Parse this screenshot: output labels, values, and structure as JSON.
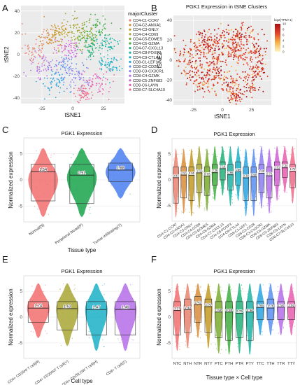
{
  "figure": {
    "title": "",
    "panel_letters": [
      "A",
      "B",
      "C",
      "D",
      "E",
      "F"
    ]
  },
  "chart_data": [
    {
      "id": "A",
      "type": "scatter",
      "title": "",
      "xlabel": "tSNE1",
      "ylabel": "tSNE2",
      "x_ticks": [
        "-25",
        "0",
        "25"
      ],
      "y_ticks": [
        "40",
        "20",
        "0",
        "-20",
        "-40"
      ],
      "xlim": [
        -42,
        42
      ],
      "ylim": [
        -45,
        45
      ],
      "legend_title": "majorCluster",
      "legend_placement": "right",
      "clusters": [
        {
          "name": "CD4-C1-CCR7",
          "color": "#e9836f",
          "cx": -30,
          "cy": 5,
          "sd": 8
        },
        {
          "name": "CD4-C2-ANXA1",
          "color": "#d98d3a",
          "cx": -20,
          "cy": 15,
          "sd": 6
        },
        {
          "name": "CD4-C3-GNLY",
          "color": "#c49a25",
          "cx": -10,
          "cy": 20,
          "sd": 5
        },
        {
          "name": "CD4-C4-CD69",
          "color": "#a8a634",
          "cx": 5,
          "cy": 25,
          "sd": 6
        },
        {
          "name": "CD4-C5-EOMES",
          "color": "#7aab2e",
          "cx": 10,
          "cy": 15,
          "sd": 5
        },
        {
          "name": "CD4-C6-GZMA",
          "color": "#3fae3f",
          "cx": 20,
          "cy": 25,
          "sd": 6
        },
        {
          "name": "CD4-C7-CXCL13",
          "color": "#22b07a",
          "cx": 15,
          "cy": 5,
          "sd": 5
        },
        {
          "name": "CD4-C8-FOXP3",
          "color": "#1db3a3",
          "cx": 28,
          "cy": 10,
          "sd": 5
        },
        {
          "name": "CD4-C9-CTLA4",
          "color": "#1ab0c6",
          "cx": 30,
          "cy": -10,
          "sd": 5
        },
        {
          "name": "CD8-C1-LEF1",
          "color": "#2aa3e0",
          "cx": -15,
          "cy": -25,
          "sd": 6
        },
        {
          "name": "CD8-C2-CD28",
          "color": "#5b8ff0",
          "cx": -5,
          "cy": -10,
          "sd": 6
        },
        {
          "name": "CD8-C3-CX3CR1",
          "color": "#8c7ff2",
          "cx": 5,
          "cy": -20,
          "sd": 6
        },
        {
          "name": "CD8-C4-GZMK",
          "color": "#b56de8",
          "cx": -25,
          "cy": -10,
          "sd": 6
        },
        {
          "name": "CD8-C5-ZNF683",
          "color": "#d45fd3",
          "cx": -5,
          "cy": 5,
          "sd": 5
        },
        {
          "name": "CD8-C6-LAYN",
          "color": "#e85eb0",
          "cx": 20,
          "cy": -25,
          "sd": 6
        },
        {
          "name": "CD8-C7-SLC4A10",
          "color": "#f06a8a",
          "cx": 10,
          "cy": -35,
          "sd": 4
        }
      ]
    },
    {
      "id": "B",
      "type": "scatter",
      "title": "PGK1 Expression in tSNE Clusters",
      "xlabel": "tSNE1",
      "ylabel": "tSNE2",
      "x_ticks": [
        "-25",
        "0",
        "25"
      ],
      "y_ticks": [
        "40",
        "20",
        "0",
        "-20",
        "-40"
      ],
      "xlim": [
        -42,
        42
      ],
      "ylim": [
        -45,
        45
      ],
      "colorbar_title": "log2(TPM+1)",
      "colorbar_ticks": [
        "10",
        "8",
        "6",
        "4",
        "2",
        "0"
      ],
      "colorbar_range": [
        0,
        10
      ],
      "colors": [
        "#fff3c4",
        "#f6b24a",
        "#e2422a",
        "#a50f15"
      ]
    },
    {
      "id": "C",
      "type": "violin",
      "title": "PGK1 Expression",
      "xlabel": "Tissue type",
      "ylabel": "Normalized expression",
      "y_ticks": [
        "5",
        "0",
        "-5"
      ],
      "ylim": [
        -8,
        8
      ],
      "categories": [
        "Normal(N)",
        "Peripheral blood(P)",
        "Tumor-infiltrating(T)"
      ],
      "colors": [
        "#f26d6d",
        "#17a34a",
        "#4a7ff0"
      ],
      "medians": [
        1.54,
        0.91,
        1.88
      ],
      "q1": [
        -4.0,
        -4.5,
        -0.3
      ],
      "q3": [
        3.0,
        3.0,
        3.2
      ],
      "violin_center": [
        0.0,
        0.5,
        1.5
      ],
      "violin_top": [
        6.0,
        6.0,
        6.0
      ],
      "violin_bottom": [
        -7.0,
        -7.0,
        -3.5
      ]
    },
    {
      "id": "D",
      "type": "violin",
      "title": "PGK1 Expression",
      "xlabel": "",
      "ylabel": "Normalized expression",
      "y_ticks": [
        "5",
        "0",
        "-5"
      ],
      "ylim": [
        -8,
        8
      ],
      "categories": [
        "CD4-C1-CCR7",
        "CD4-C2-ANXA1",
        "CD4-C3-GNLY",
        "CD4-C4-CD69",
        "CD4-C5-EOMES",
        "CD4-C6-GZMA",
        "CD4-C7-CXCL13",
        "CD4-C8-FOXP3",
        "CD4-C9-CTLA4",
        "CD8-C1-LEF1",
        "CD8-C2-CD28",
        "CD8-C3-CX3CR1",
        "CD8-C4-GZMK",
        "CD8-C5-ZNF683",
        "CD8-C6-LAYN",
        "CD8-C7-SLC4A10"
      ],
      "colors": [
        "#e9836f",
        "#d98d3a",
        "#c49a25",
        "#a8a634",
        "#7aab2e",
        "#3fae3f",
        "#22b07a",
        "#1db3a3",
        "#1ab0c6",
        "#2aa3e0",
        "#5b8ff0",
        "#8c7ff2",
        "#b56de8",
        "#d45fd3",
        "#e85eb0",
        "#f06a8a"
      ],
      "medians": [
        0.43,
        0.93,
        0.91,
        1.37,
        0.77,
        1.39,
        2.19,
        0.99,
        1.59,
        0.39,
        0.59,
        1.31,
        0.79,
        2.01,
        2.34,
        1.71
      ],
      "q1": [
        -4.5,
        -3.5,
        -4.0,
        -2.5,
        -3.0,
        -1.0,
        0.0,
        -2.0,
        -1.0,
        -4.0,
        -4.0,
        -2.5,
        -3.5,
        -1.0,
        0.5,
        -1.5
      ],
      "q3": [
        2.5,
        2.5,
        2.5,
        3.0,
        2.5,
        3.0,
        3.5,
        3.0,
        3.5,
        2.5,
        2.5,
        3.0,
        2.5,
        3.5,
        3.5,
        3.0
      ]
    },
    {
      "id": "E",
      "type": "violin",
      "title": "PGK1 Expression",
      "xlabel": "Cell type",
      "ylabel": "Normalized expression",
      "y_ticks": [
        "5",
        "0",
        "-5"
      ],
      "ylim": [
        -8,
        8
      ],
      "categories": [
        "CD4+ CD25HI T cell(R)",
        "CD4+ CD25INT T cell(Y)",
        "CD4+ CD25LOW T cell(H)",
        "CD8+ T cell(C)"
      ],
      "colors": [
        "#f26d6d",
        "#a8a634",
        "#1ab0c6",
        "#b56de8"
      ],
      "medians": [
        1.74,
        1.63,
        1.47,
        1.49
      ],
      "q1": [
        -1.0,
        -2.5,
        -3.5,
        -3.5
      ],
      "q3": [
        3.0,
        3.0,
        3.0,
        3.0
      ]
    },
    {
      "id": "F",
      "type": "violin",
      "title": "PGK1 Expression",
      "xlabel": "Tissue type × Cell type",
      "ylabel": "Normalized expression",
      "y_ticks": [
        "5",
        "0",
        "-5"
      ],
      "ylim": [
        -8,
        8
      ],
      "categories": [
        "NTC",
        "NTH",
        "NTR",
        "NTY",
        "PTC",
        "PTH",
        "PTR",
        "PTY",
        "TTC",
        "TTH",
        "TTR",
        "TTY"
      ],
      "colors": [
        "#f26d6d",
        "#e9836f",
        "#d98d3a",
        "#c49a25",
        "#7aab2e",
        "#3fae3f",
        "#22b07a",
        "#1db3a3",
        "#2aa3e0",
        "#5b8ff0",
        "#b56de8",
        "#e85eb0"
      ],
      "medians": [
        1.27,
        1.43,
        2.42,
        2.01,
        0.98,
        0.98,
        0.76,
        0.98,
        1.85,
        1.76,
        1.92,
        1.92
      ],
      "q1": [
        -3.5,
        -3.0,
        -1.0,
        -3.0,
        -4.0,
        -4.5,
        -4.0,
        -4.5,
        -0.5,
        -0.5,
        -0.5,
        -0.5
      ],
      "q3": [
        3.0,
        3.5,
        4.0,
        3.5,
        3.0,
        3.0,
        3.0,
        3.0,
        3.0,
        3.5,
        3.0,
        3.0
      ]
    }
  ]
}
